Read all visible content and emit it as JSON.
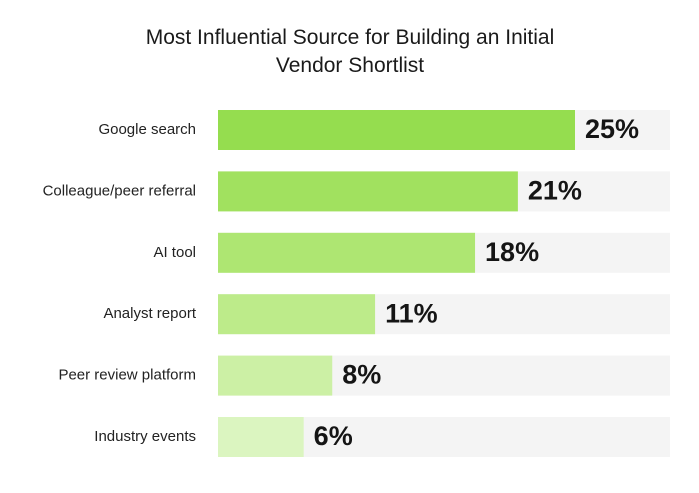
{
  "chart_data": {
    "type": "bar",
    "orientation": "horizontal",
    "title": "Most Influential Source for Building an Initial Vendor Shortlist",
    "categories": [
      "Google search",
      "Colleague/peer referral",
      "AI tool",
      "Analyst report",
      "Peer review platform",
      "Industry events"
    ],
    "values": [
      25,
      21,
      18,
      11,
      8,
      6
    ],
    "value_labels": [
      "25%",
      "21%",
      "18%",
      "11%",
      "8%",
      "6%"
    ],
    "colors": [
      "#95dd4f",
      "#a1e15f",
      "#aee672",
      "#bdeb8a",
      "#ccf0a5",
      "#dbf5c0"
    ],
    "track_color": "#f4f4f4"
  }
}
